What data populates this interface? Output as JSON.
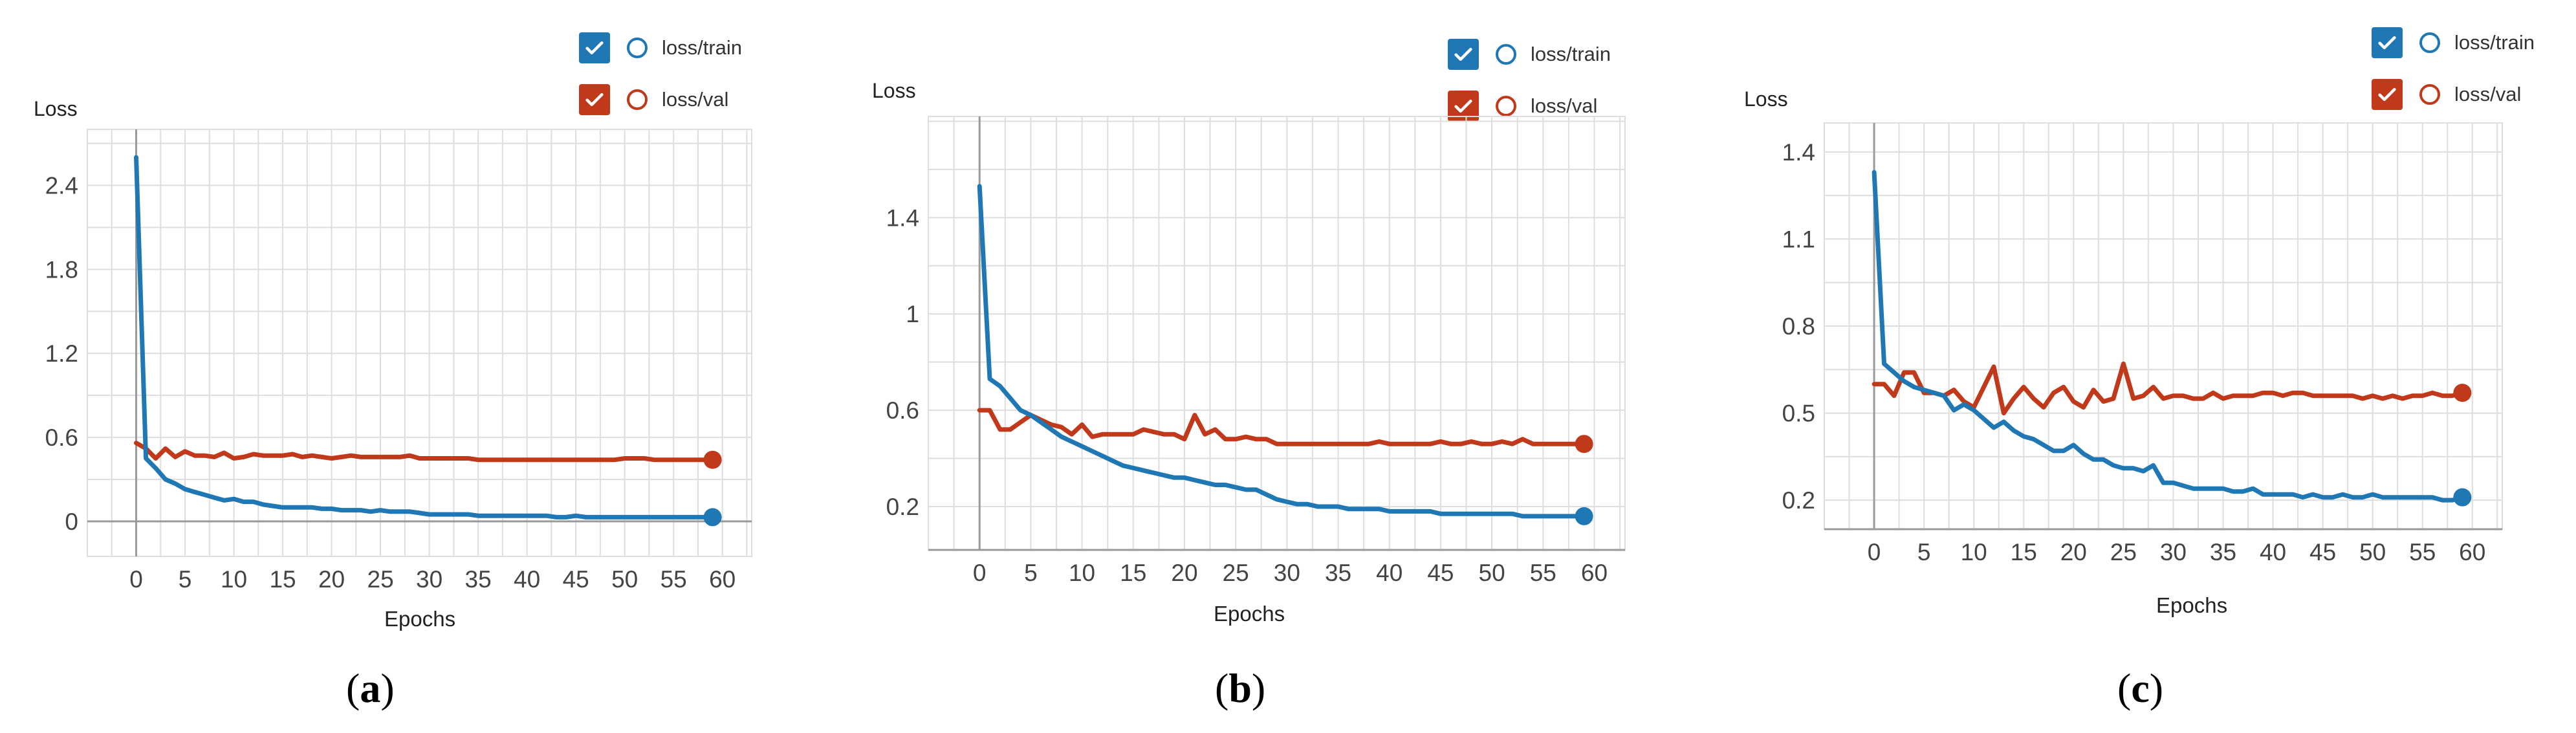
{
  "legend": {
    "train_label": "loss/train",
    "val_label": "loss/val"
  },
  "colors": {
    "train": "#1f78b4",
    "val": "#c0391b",
    "grid": "#dedede",
    "axis": "#9a9a9a"
  },
  "chart_data": [
    {
      "type": "line",
      "caption_letter": "a",
      "ylabel": "Loss",
      "xlabel": "Epochs",
      "ylim": [
        -0.25,
        2.8
      ],
      "yticks": [
        0,
        0.6,
        1.2,
        1.8,
        2.4
      ],
      "ytick_labels": [
        "0",
        "0.6",
        "1.2",
        "1.8",
        "2.4"
      ],
      "xticks": [
        0,
        5,
        10,
        15,
        20,
        25,
        30,
        35,
        40,
        45,
        50,
        55,
        60
      ],
      "xlim": [
        -5,
        63
      ],
      "grid": true,
      "legend_position": "top-right",
      "series": [
        {
          "name": "loss/train",
          "x": [
            0,
            1,
            2,
            3,
            4,
            5,
            6,
            7,
            8,
            9,
            10,
            11,
            12,
            13,
            14,
            15,
            16,
            17,
            18,
            19,
            20,
            21,
            22,
            23,
            24,
            25,
            26,
            27,
            28,
            29,
            30,
            31,
            32,
            33,
            34,
            35,
            36,
            37,
            38,
            39,
            40,
            41,
            42,
            43,
            44,
            45,
            46,
            47,
            48,
            49,
            50,
            51,
            52,
            53,
            54,
            55,
            56,
            57,
            58,
            59
          ],
          "y": [
            2.6,
            0.45,
            0.38,
            0.3,
            0.27,
            0.23,
            0.21,
            0.19,
            0.17,
            0.15,
            0.16,
            0.14,
            0.14,
            0.12,
            0.11,
            0.1,
            0.1,
            0.1,
            0.1,
            0.09,
            0.09,
            0.08,
            0.08,
            0.08,
            0.07,
            0.08,
            0.07,
            0.07,
            0.07,
            0.06,
            0.05,
            0.05,
            0.05,
            0.05,
            0.05,
            0.04,
            0.04,
            0.04,
            0.04,
            0.04,
            0.04,
            0.04,
            0.04,
            0.03,
            0.03,
            0.04,
            0.03,
            0.03,
            0.03,
            0.03,
            0.03,
            0.03,
            0.03,
            0.03,
            0.03,
            0.03,
            0.03,
            0.03,
            0.03,
            0.03
          ]
        },
        {
          "name": "loss/val",
          "x": [
            0,
            1,
            2,
            3,
            4,
            5,
            6,
            7,
            8,
            9,
            10,
            11,
            12,
            13,
            14,
            15,
            16,
            17,
            18,
            19,
            20,
            21,
            22,
            23,
            24,
            25,
            26,
            27,
            28,
            29,
            30,
            31,
            32,
            33,
            34,
            35,
            36,
            37,
            38,
            39,
            40,
            41,
            42,
            43,
            44,
            45,
            46,
            47,
            48,
            49,
            50,
            51,
            52,
            53,
            54,
            55,
            56,
            57,
            58,
            59
          ],
          "y": [
            0.56,
            0.52,
            0.45,
            0.52,
            0.46,
            0.5,
            0.47,
            0.47,
            0.46,
            0.49,
            0.45,
            0.46,
            0.48,
            0.47,
            0.47,
            0.47,
            0.48,
            0.46,
            0.47,
            0.46,
            0.45,
            0.46,
            0.47,
            0.46,
            0.46,
            0.46,
            0.46,
            0.46,
            0.47,
            0.45,
            0.45,
            0.45,
            0.45,
            0.45,
            0.45,
            0.44,
            0.44,
            0.44,
            0.44,
            0.44,
            0.44,
            0.44,
            0.44,
            0.44,
            0.44,
            0.44,
            0.44,
            0.44,
            0.44,
            0.44,
            0.45,
            0.45,
            0.45,
            0.44,
            0.44,
            0.44,
            0.44,
            0.44,
            0.44,
            0.44
          ]
        }
      ]
    },
    {
      "type": "line",
      "caption_letter": "b",
      "ylabel": "Loss",
      "xlabel": "Epochs",
      "ylim": [
        0.02,
        1.82
      ],
      "yticks": [
        0.2,
        0.6,
        1,
        1.4
      ],
      "ytick_labels": [
        "0.2",
        "0.6",
        "1",
        "1.4"
      ],
      "xticks": [
        0,
        5,
        10,
        15,
        20,
        25,
        30,
        35,
        40,
        45,
        50,
        55,
        60
      ],
      "xlim": [
        -5,
        63
      ],
      "grid": true,
      "legend_position": "top-right",
      "series": [
        {
          "name": "loss/train",
          "x": [
            0,
            1,
            2,
            3,
            4,
            5,
            6,
            7,
            8,
            9,
            10,
            11,
            12,
            13,
            14,
            15,
            16,
            17,
            18,
            19,
            20,
            21,
            22,
            23,
            24,
            25,
            26,
            27,
            28,
            29,
            30,
            31,
            32,
            33,
            34,
            35,
            36,
            37,
            38,
            39,
            40,
            41,
            42,
            43,
            44,
            45,
            46,
            47,
            48,
            49,
            50,
            51,
            52,
            53,
            54,
            55,
            56,
            57,
            58,
            59
          ],
          "y": [
            1.53,
            0.73,
            0.7,
            0.65,
            0.6,
            0.58,
            0.55,
            0.52,
            0.49,
            0.47,
            0.45,
            0.43,
            0.41,
            0.39,
            0.37,
            0.36,
            0.35,
            0.34,
            0.33,
            0.32,
            0.32,
            0.31,
            0.3,
            0.29,
            0.29,
            0.28,
            0.27,
            0.27,
            0.25,
            0.23,
            0.22,
            0.21,
            0.21,
            0.2,
            0.2,
            0.2,
            0.19,
            0.19,
            0.19,
            0.19,
            0.18,
            0.18,
            0.18,
            0.18,
            0.18,
            0.17,
            0.17,
            0.17,
            0.17,
            0.17,
            0.17,
            0.17,
            0.17,
            0.16,
            0.16,
            0.16,
            0.16,
            0.16,
            0.16,
            0.16
          ]
        },
        {
          "name": "loss/val",
          "x": [
            0,
            1,
            2,
            3,
            4,
            5,
            6,
            7,
            8,
            9,
            10,
            11,
            12,
            13,
            14,
            15,
            16,
            17,
            18,
            19,
            20,
            21,
            22,
            23,
            24,
            25,
            26,
            27,
            28,
            29,
            30,
            31,
            32,
            33,
            34,
            35,
            36,
            37,
            38,
            39,
            40,
            41,
            42,
            43,
            44,
            45,
            46,
            47,
            48,
            49,
            50,
            51,
            52,
            53,
            54,
            55,
            56,
            57,
            58,
            59
          ],
          "y": [
            0.6,
            0.6,
            0.52,
            0.52,
            0.55,
            0.58,
            0.56,
            0.54,
            0.53,
            0.5,
            0.54,
            0.49,
            0.5,
            0.5,
            0.5,
            0.5,
            0.52,
            0.51,
            0.5,
            0.5,
            0.48,
            0.58,
            0.5,
            0.52,
            0.48,
            0.48,
            0.49,
            0.48,
            0.48,
            0.46,
            0.46,
            0.46,
            0.46,
            0.46,
            0.46,
            0.46,
            0.46,
            0.46,
            0.46,
            0.47,
            0.46,
            0.46,
            0.46,
            0.46,
            0.46,
            0.47,
            0.46,
            0.46,
            0.47,
            0.46,
            0.46,
            0.47,
            0.46,
            0.48,
            0.46,
            0.46,
            0.46,
            0.46,
            0.46,
            0.46
          ]
        }
      ]
    },
    {
      "type": "line",
      "caption_letter": "c",
      "ylabel": "Loss",
      "xlabel": "Epochs",
      "ylim": [
        0.1,
        1.5
      ],
      "yticks": [
        0.2,
        0.5,
        0.8,
        1.1,
        1.4
      ],
      "ytick_labels": [
        "0.2",
        "0.5",
        "0.8",
        "1.1",
        "1.4"
      ],
      "xticks": [
        0,
        5,
        10,
        15,
        20,
        25,
        30,
        35,
        40,
        45,
        50,
        55,
        60
      ],
      "xlim": [
        -5,
        63
      ],
      "grid": true,
      "legend_position": "top-right",
      "series": [
        {
          "name": "loss/train",
          "x": [
            0,
            1,
            2,
            3,
            4,
            5,
            6,
            7,
            8,
            9,
            10,
            11,
            12,
            13,
            14,
            15,
            16,
            17,
            18,
            19,
            20,
            21,
            22,
            23,
            24,
            25,
            26,
            27,
            28,
            29,
            30,
            31,
            32,
            33,
            34,
            35,
            36,
            37,
            38,
            39,
            40,
            41,
            42,
            43,
            44,
            45,
            46,
            47,
            48,
            49,
            50,
            51,
            52,
            53,
            54,
            55,
            56,
            57,
            58,
            59
          ],
          "y": [
            1.33,
            0.67,
            0.64,
            0.61,
            0.59,
            0.58,
            0.57,
            0.56,
            0.51,
            0.53,
            0.51,
            0.48,
            0.45,
            0.47,
            0.44,
            0.42,
            0.41,
            0.39,
            0.37,
            0.37,
            0.39,
            0.36,
            0.34,
            0.34,
            0.32,
            0.31,
            0.31,
            0.3,
            0.32,
            0.26,
            0.26,
            0.25,
            0.24,
            0.24,
            0.24,
            0.24,
            0.23,
            0.23,
            0.24,
            0.22,
            0.22,
            0.22,
            0.22,
            0.21,
            0.22,
            0.21,
            0.21,
            0.22,
            0.21,
            0.21,
            0.22,
            0.21,
            0.21,
            0.21,
            0.21,
            0.21,
            0.21,
            0.2,
            0.2,
            0.21
          ]
        },
        {
          "name": "loss/val",
          "x": [
            0,
            1,
            2,
            3,
            4,
            5,
            6,
            7,
            8,
            9,
            10,
            11,
            12,
            13,
            14,
            15,
            16,
            17,
            18,
            19,
            20,
            21,
            22,
            23,
            24,
            25,
            26,
            27,
            28,
            29,
            30,
            31,
            32,
            33,
            34,
            35,
            36,
            37,
            38,
            39,
            40,
            41,
            42,
            43,
            44,
            45,
            46,
            47,
            48,
            49,
            50,
            51,
            52,
            53,
            54,
            55,
            56,
            57,
            58,
            59
          ],
          "y": [
            0.6,
            0.6,
            0.56,
            0.64,
            0.64,
            0.57,
            0.57,
            0.56,
            0.58,
            0.54,
            0.52,
            0.59,
            0.66,
            0.5,
            0.55,
            0.59,
            0.55,
            0.52,
            0.57,
            0.59,
            0.54,
            0.52,
            0.58,
            0.54,
            0.55,
            0.67,
            0.55,
            0.56,
            0.59,
            0.55,
            0.56,
            0.56,
            0.55,
            0.55,
            0.57,
            0.55,
            0.56,
            0.56,
            0.56,
            0.57,
            0.57,
            0.56,
            0.57,
            0.57,
            0.56,
            0.56,
            0.56,
            0.56,
            0.56,
            0.55,
            0.56,
            0.55,
            0.56,
            0.55,
            0.56,
            0.56,
            0.57,
            0.56,
            0.56,
            0.57
          ]
        }
      ]
    }
  ]
}
